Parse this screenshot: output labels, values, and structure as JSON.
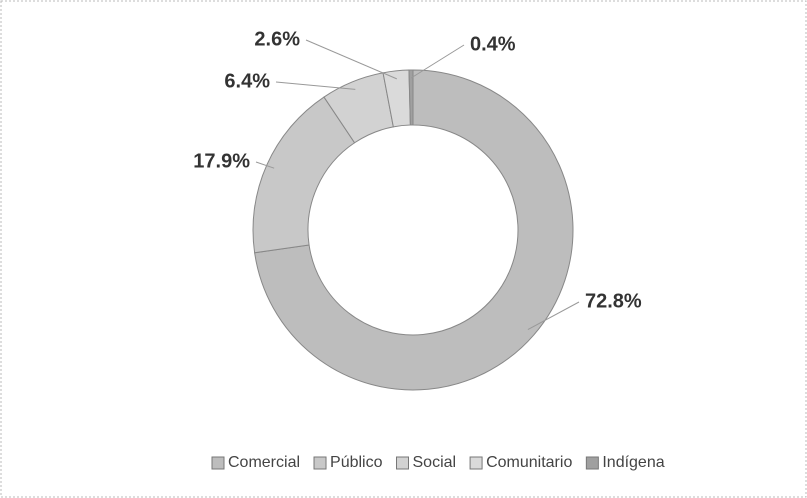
{
  "chart_data": {
    "type": "doughnut",
    "categories": [
      "Comercial",
      "Público",
      "Social",
      "Comunitario",
      "Indígena"
    ],
    "values": [
      72.8,
      17.9,
      6.4,
      2.6,
      0.4
    ],
    "value_labels": [
      "72.8%",
      "17.9%",
      "6.4%",
      "2.6%",
      "0.4%"
    ],
    "colors": [
      "#bdbdbd",
      "#c8c8c8",
      "#d2d2d2",
      "#dadada",
      "#a0a0a0"
    ],
    "legend": "bottom"
  }
}
